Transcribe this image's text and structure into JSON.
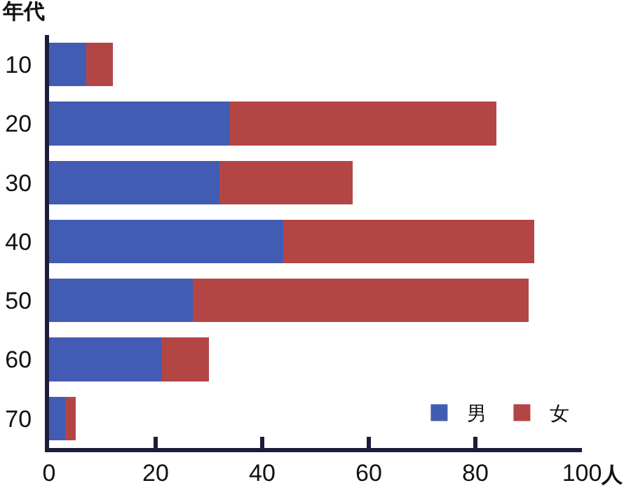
{
  "chart_data": {
    "type": "bar",
    "orientation": "horizontal",
    "stacked": true,
    "ylabel": "年代",
    "xlabel": "人",
    "categories": [
      "10",
      "20",
      "30",
      "40",
      "50",
      "60",
      "70"
    ],
    "series": [
      {
        "name": "男",
        "color": "#425cb4",
        "values": [
          7,
          34,
          32,
          44,
          27,
          21,
          3
        ]
      },
      {
        "name": "女",
        "color": "#b44545",
        "values": [
          5,
          50,
          25,
          47,
          63,
          9,
          2
        ]
      }
    ],
    "xlim": [
      0,
      100
    ],
    "xticks": [
      0,
      20,
      40,
      60,
      80,
      100
    ],
    "grid": false,
    "legend": "bottom right"
  }
}
